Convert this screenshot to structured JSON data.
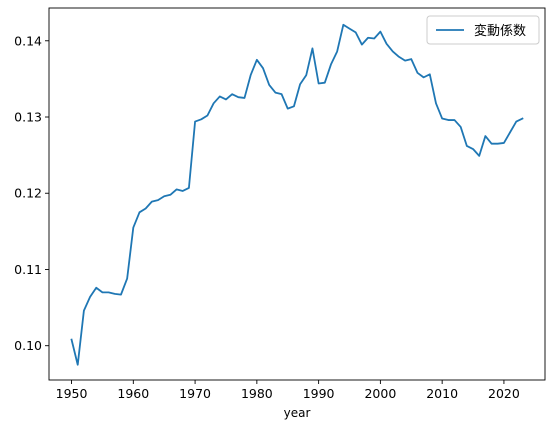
{
  "chart_data": {
    "type": "line",
    "title": "",
    "xlabel": "year",
    "ylabel": "",
    "xlim": [
      1946.35,
      2026.65
    ],
    "ylim": [
      0.0955,
      0.1443
    ],
    "grid": false,
    "legend_position": "top-right",
    "x_ticks": [
      1950,
      1960,
      1970,
      1980,
      1990,
      2000,
      2010,
      2020
    ],
    "y_ticks": [
      0.1,
      0.11,
      0.12,
      0.13,
      0.14
    ],
    "y_tick_labels": [
      "0.10",
      "0.11",
      "0.12",
      "0.13",
      "0.14"
    ],
    "series": [
      {
        "name": "変動係数",
        "color": "#1f77b4",
        "x": [
          1950,
          1951,
          1952,
          1953,
          1954,
          1955,
          1956,
          1957,
          1958,
          1959,
          1960,
          1961,
          1962,
          1963,
          1964,
          1965,
          1966,
          1967,
          1968,
          1969,
          1970,
          1971,
          1972,
          1973,
          1974,
          1975,
          1976,
          1977,
          1978,
          1979,
          1980,
          1981,
          1982,
          1983,
          1984,
          1985,
          1986,
          1987,
          1988,
          1989,
          1990,
          1991,
          1992,
          1993,
          1994,
          1995,
          1996,
          1997,
          1998,
          1999,
          2000,
          2001,
          2002,
          2003,
          2004,
          2005,
          2006,
          2007,
          2008,
          2009,
          2010,
          2011,
          2012,
          2013,
          2014,
          2015,
          2016,
          2017,
          2018,
          2019,
          2020,
          2021,
          2022,
          2023
        ],
        "values": [
          0.1008,
          0.0975,
          0.1046,
          0.1064,
          0.1076,
          0.107,
          0.107,
          0.1068,
          0.1067,
          0.1088,
          0.1155,
          0.1175,
          0.118,
          0.1189,
          0.1191,
          0.1196,
          0.1198,
          0.1205,
          0.1203,
          0.1207,
          0.1294,
          0.1297,
          0.1302,
          0.1318,
          0.1327,
          0.1323,
          0.133,
          0.1326,
          0.1325,
          0.1355,
          0.1375,
          0.1364,
          0.1342,
          0.1332,
          0.133,
          0.1311,
          0.1314,
          0.1343,
          0.1355,
          0.139,
          0.1344,
          0.1345,
          0.1369,
          0.1386,
          0.1421,
          0.1416,
          0.1411,
          0.1395,
          0.1404,
          0.1403,
          0.1412,
          0.1396,
          0.1386,
          0.1379,
          0.1374,
          0.1376,
          0.1358,
          0.1352,
          0.1356,
          0.1318,
          0.1298,
          0.1296,
          0.1296,
          0.1287,
          0.1262,
          0.1258,
          0.1249,
          0.1275,
          0.1265,
          0.1265,
          0.1266,
          0.128,
          0.1294,
          0.1298
        ]
      }
    ]
  }
}
